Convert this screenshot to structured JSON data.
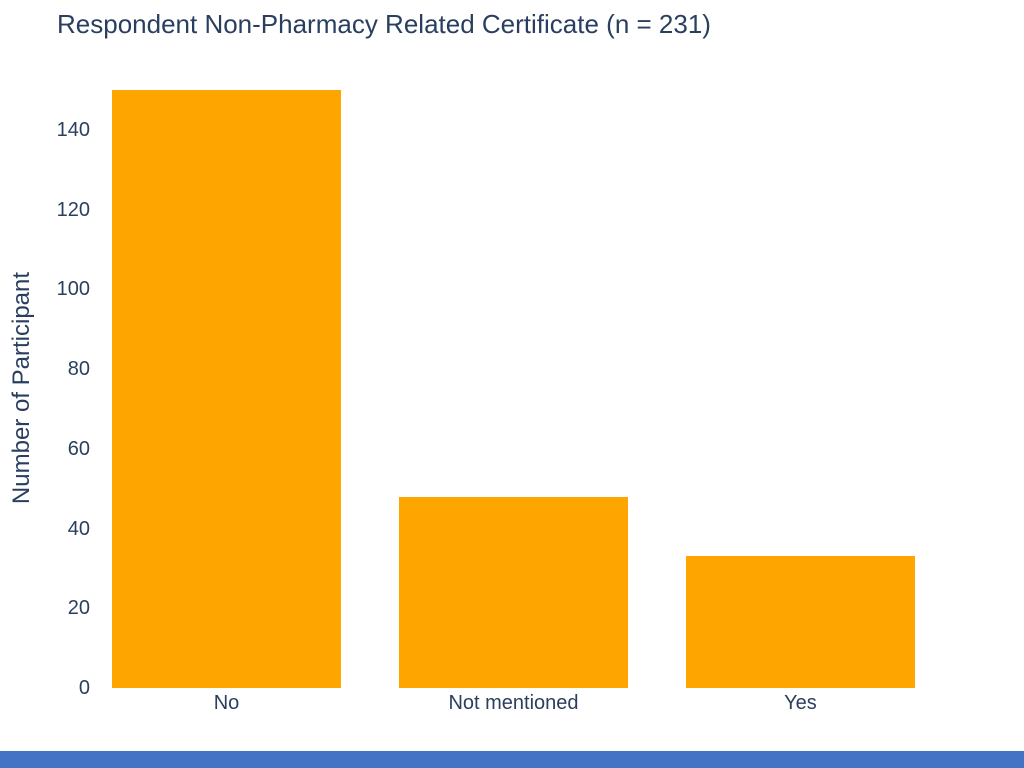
{
  "page": {
    "background_color": "#ffffff",
    "footer_strip_color": "#4472c4"
  },
  "chart_data": {
    "type": "bar",
    "title": "Respondent Non-Pharmacy Related Certificate (n = 231)",
    "xlabel": "",
    "ylabel": "Number of Participant",
    "categories": [
      "No",
      "Not mentioned",
      "Yes"
    ],
    "values": [
      150,
      48,
      33
    ],
    "n_total": 231,
    "yticks": [
      0,
      20,
      40,
      60,
      80,
      100,
      120,
      140
    ],
    "ylim": [
      0,
      150
    ],
    "grid": false,
    "legend_position": "none",
    "bar_color": "#ffa500",
    "text_color": "#2a3f5f"
  }
}
